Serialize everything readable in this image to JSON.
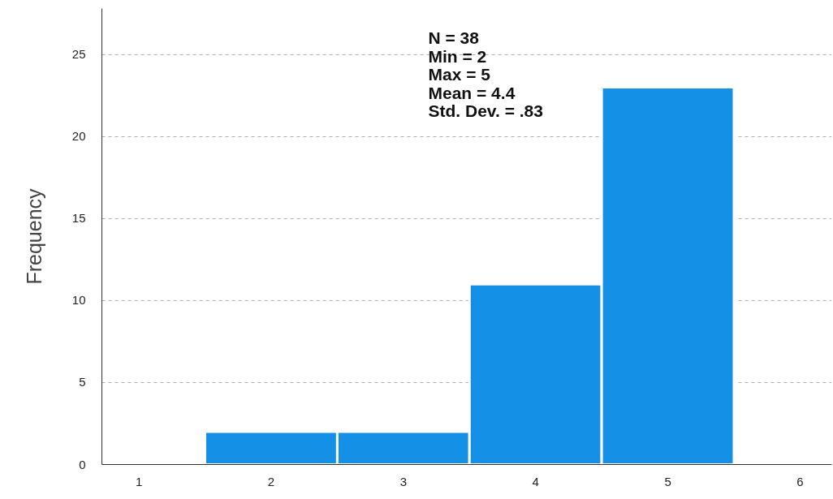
{
  "chart_data": {
    "type": "histogram",
    "ylabel": "Frequency",
    "bins": [
      1.5,
      2.5,
      3.5,
      4.5,
      5.5
    ],
    "values": [
      2,
      2,
      11,
      23
    ],
    "color": "#1490e6",
    "xlim": [
      0.72,
      6.24
    ],
    "xticks": [
      1,
      2,
      3,
      4,
      5,
      6
    ],
    "ylim": [
      0,
      27.8
    ],
    "yticks": [
      0,
      5,
      10,
      15,
      20,
      25
    ],
    "grid": "y",
    "annotations": [
      "N = 38",
      "Min = 2",
      "Max = 5",
      "Mean = 4.4",
      "Std. Dev. = .83"
    ]
  }
}
